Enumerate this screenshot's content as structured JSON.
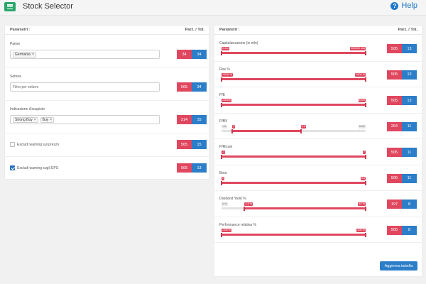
{
  "app": {
    "title": "Stock Selector",
    "help_label": "Help"
  },
  "colors": {
    "red": "#e0475f",
    "blue": "#2c7ec8",
    "green": "#2aa66a"
  },
  "left": {
    "header": {
      "param": "Parametri :",
      "count": "Parz. / Tot."
    },
    "paese": {
      "label": "Paese",
      "tag": "Germania",
      "partial": "34",
      "total": "34"
    },
    "settore": {
      "label": "Settore",
      "placeholder": "Filtro per settore",
      "partial": "505",
      "total": "34"
    },
    "indicazione": {
      "label": "Indicazione d'acquisto",
      "tags": [
        "Strong Buy",
        "Buy"
      ],
      "partial": "214",
      "total": "15"
    },
    "escludi_prezzo": {
      "label": "Escludi warning sul prezzo",
      "checked": false,
      "partial": "505",
      "total": "15"
    },
    "escludi_eps": {
      "label": "Escludi warning sugli EPS",
      "checked": true,
      "partial": "505",
      "total": "13"
    }
  },
  "right": {
    "header": {
      "param": "Parametri :",
      "count": "Parz. / Tot."
    },
    "filters": [
      {
        "label": "Capitalizzazione (in mln)",
        "min_label": "0 mln",
        "max_label": "300000 mln",
        "low": 0.0,
        "high": 1.0,
        "partial": "505",
        "total": "13"
      },
      {
        "label": "Roe %",
        "min_label": "-2000 %",
        "max_label": "2000 %",
        "low": 0.0,
        "high": 1.0,
        "partial": "505",
        "total": "13"
      },
      {
        "label": "P/E",
        "min_label": "-45000",
        "max_label": "4000",
        "low": 0.0,
        "high": 1.0,
        "partial": "505",
        "total": "13"
      },
      {
        "label": "P/BV",
        "range_min": "-10",
        "range_max": "4000",
        "min_label": "0",
        "max_label": "2.5",
        "low": 0.075,
        "high": 0.55,
        "partial": "264",
        "total": "11"
      },
      {
        "label": "P/Ricavi",
        "min_label": "-1",
        "max_label": "7",
        "low": 0.0,
        "high": 1.0,
        "partial": "505",
        "total": "11"
      },
      {
        "label": "Beta",
        "min_label": "0",
        "max_label": "3.5",
        "low": 0.0,
        "high": 1.0,
        "partial": "505",
        "total": "11"
      },
      {
        "label": "Dividend Yield %",
        "range_min": "0 %",
        "min_label": "2.5 %",
        "max_label": "40 %",
        "low": 0.16,
        "high": 1.0,
        "partial": "197",
        "total": "8"
      },
      {
        "label": "Performance relativa %",
        "min_label": "-100 %",
        "max_label": "100 %",
        "low": 0.0,
        "high": 1.0,
        "partial": "505",
        "total": "8"
      }
    ],
    "update_button": "Aggiorna tabella"
  }
}
